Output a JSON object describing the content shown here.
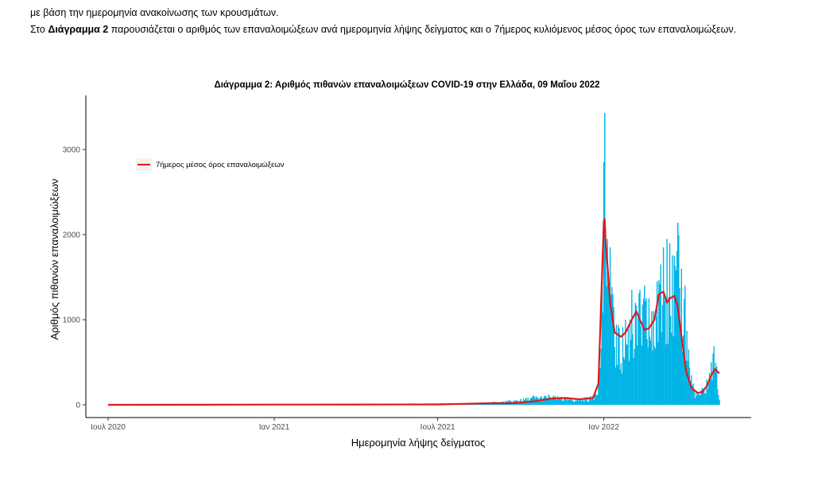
{
  "intro": {
    "line1": "με βάση την ημερομηνία ανακοίνωσης των κρουσμάτων.",
    "line2_prefix": "Στο ",
    "line2_bold": "Διάγραμμα 2",
    "line2_rest": " παρουσιάζεται ο αριθμός των επαναλοιμώξεων ανά ημερομηνία λήψης δείγματος και ο 7ήμερος κυλιόμενος μέσος όρος των επαναλοιμώξεων."
  },
  "chart_data": {
    "type": "bar",
    "title": "Διάγραμμα 2: Αριθμός πιθανών επαναλοιμώξεων COVID-19 στην Ελλάδα, 09 Μαΐου 2022",
    "xlabel": "Ημερομηνία λήψης δείγματος",
    "ylabel": "Αριθμός πιθανών επαναλοιμώξεων",
    "x_ticks": [
      "Ιουλ 2020",
      "Ιαν 2021",
      "Ιουλ 2021",
      "Ιαν 2022"
    ],
    "y_ticks": [
      0,
      1000,
      2000,
      3000
    ],
    "ylim": [
      0,
      3450
    ],
    "x_range": [
      "2020-07-01",
      "2022-05-09"
    ],
    "grid": false,
    "legend_position": "top-left",
    "series": [
      {
        "name": "",
        "kind": "daily-bars",
        "color": "#00b4e6",
        "points": [
          [
            "2021-08-01",
            20
          ],
          [
            "2021-09-01",
            35
          ],
          [
            "2021-10-01",
            70
          ],
          [
            "2021-10-15",
            110
          ],
          [
            "2021-11-01",
            120
          ],
          [
            "2021-11-15",
            95
          ],
          [
            "2021-12-01",
            75
          ],
          [
            "2021-12-20",
            110
          ],
          [
            "2021-12-27",
            420
          ],
          [
            "2021-12-30",
            1450
          ],
          [
            "2022-01-01",
            2850
          ],
          [
            "2022-01-02",
            3430
          ],
          [
            "2022-01-03",
            2000
          ],
          [
            "2022-01-05",
            1950
          ],
          [
            "2022-01-08",
            1850
          ],
          [
            "2022-01-12",
            1150
          ],
          [
            "2022-01-18",
            900
          ],
          [
            "2022-01-25",
            1000
          ],
          [
            "2022-02-01",
            1350
          ],
          [
            "2022-02-05",
            1200
          ],
          [
            "2022-02-10",
            1350
          ],
          [
            "2022-02-15",
            1400
          ],
          [
            "2022-02-20",
            1250
          ],
          [
            "2022-02-25",
            1100
          ],
          [
            "2022-03-01",
            1450
          ],
          [
            "2022-03-05",
            1650
          ],
          [
            "2022-03-08",
            1850
          ],
          [
            "2022-03-12",
            1950
          ],
          [
            "2022-03-15",
            1900
          ],
          [
            "2022-03-20",
            1750
          ],
          [
            "2022-03-24",
            2140
          ],
          [
            "2022-03-28",
            1600
          ],
          [
            "2022-04-01",
            1400
          ],
          [
            "2022-04-05",
            650
          ],
          [
            "2022-04-10",
            250
          ],
          [
            "2022-04-15",
            150
          ],
          [
            "2022-04-20",
            200
          ],
          [
            "2022-04-25",
            300
          ],
          [
            "2022-04-30",
            500
          ],
          [
            "2022-05-03",
            690
          ],
          [
            "2022-05-06",
            450
          ],
          [
            "2022-05-09",
            60
          ]
        ]
      },
      {
        "name": "7ήμερος μέσος όρος επαναλοιμώξεων",
        "kind": "line",
        "color": "#dd1b1b",
        "points": [
          [
            "2020-07-01",
            0
          ],
          [
            "2020-10-01",
            1
          ],
          [
            "2021-01-01",
            3
          ],
          [
            "2021-04-01",
            4
          ],
          [
            "2021-07-01",
            5
          ],
          [
            "2021-08-01",
            12
          ],
          [
            "2021-09-01",
            20
          ],
          [
            "2021-09-20",
            18
          ],
          [
            "2021-10-15",
            40
          ],
          [
            "2021-11-05",
            75
          ],
          [
            "2021-11-20",
            80
          ],
          [
            "2021-12-05",
            65
          ],
          [
            "2021-12-20",
            80
          ],
          [
            "2021-12-26",
            250
          ],
          [
            "2021-12-29",
            1200
          ],
          [
            "2022-01-01",
            2150
          ],
          [
            "2022-01-02",
            2180
          ],
          [
            "2022-01-03",
            1900
          ],
          [
            "2022-01-05",
            1650
          ],
          [
            "2022-01-08",
            1200
          ],
          [
            "2022-01-13",
            850
          ],
          [
            "2022-01-20",
            800
          ],
          [
            "2022-01-25",
            850
          ],
          [
            "2022-02-01",
            1000
          ],
          [
            "2022-02-06",
            1100
          ],
          [
            "2022-02-10",
            1000
          ],
          [
            "2022-02-15",
            880
          ],
          [
            "2022-02-20",
            900
          ],
          [
            "2022-02-26",
            1000
          ],
          [
            "2022-03-03",
            1300
          ],
          [
            "2022-03-08",
            1330
          ],
          [
            "2022-03-12",
            1200
          ],
          [
            "2022-03-15",
            1250
          ],
          [
            "2022-03-20",
            1280
          ],
          [
            "2022-03-24",
            1150
          ],
          [
            "2022-03-28",
            800
          ],
          [
            "2022-04-02",
            400
          ],
          [
            "2022-04-08",
            200
          ],
          [
            "2022-04-15",
            140
          ],
          [
            "2022-04-20",
            150
          ],
          [
            "2022-04-25",
            220
          ],
          [
            "2022-04-30",
            350
          ],
          [
            "2022-05-04",
            420
          ],
          [
            "2022-05-09",
            370
          ]
        ]
      }
    ]
  }
}
